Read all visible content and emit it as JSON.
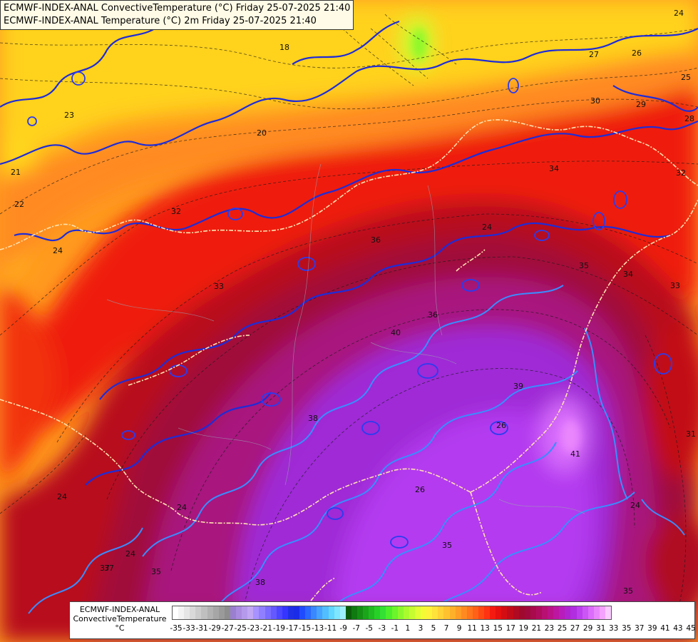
{
  "titles": {
    "line1": "ECMWF-INDEX-ANAL ConvectiveTemperature (°C) Friday 25-07-2025 21:40",
    "line2": "ECMWF-INDEX-ANAL Temperature (°C) 2m Friday 25-07-2025 21:40"
  },
  "legend": {
    "title_line1": "ECMWF-INDEX-ANAL",
    "title_line2": "ConvectiveTemperature",
    "unit": "°C",
    "tick_labels": [
      "-35",
      "-33",
      "-31",
      "-29",
      "-27",
      "-25",
      "-23",
      "-21",
      "-19",
      "-17",
      "-15",
      "-13",
      "-11",
      "-9",
      "-7",
      "-5",
      "-3",
      "-1",
      "1",
      "3",
      "5",
      "7",
      "9",
      "11",
      "13",
      "15",
      "17",
      "19",
      "21",
      "23",
      "25",
      "27",
      "29",
      "31",
      "33",
      "35",
      "37",
      "39",
      "41",
      "43",
      "45"
    ],
    "colors": [
      "#ffffff",
      "#f3f3f3",
      "#e6e6e6",
      "#d9d9d9",
      "#cccccc",
      "#bfbfbf",
      "#b2b2b2",
      "#a6a6a6",
      "#9a9a9a",
      "#8e8e8e",
      "#9a7fd0",
      "#a98bdf",
      "#b59aec",
      "#c2a8f4",
      "#a892ff",
      "#9080ff",
      "#7a6cff",
      "#6458ff",
      "#4b46ff",
      "#3535ff",
      "#1f2fe6",
      "#1a2ce8",
      "#1f4bff",
      "#2a68ff",
      "#3a88ff",
      "#46a3ff",
      "#52beff",
      "#61d6ff",
      "#7fe6ff",
      "#9ef2ff",
      "#0a5c0a",
      "#0f7a0f",
      "#148f14",
      "#1aa51a",
      "#20bb20",
      "#27d027",
      "#33e033",
      "#4cee2c",
      "#6bf52a",
      "#8cf82c",
      "#aafb2e",
      "#c6fd30",
      "#e0fe33",
      "#f4fb35",
      "#fff23a",
      "#ffe23a",
      "#ffd235",
      "#ffc22f",
      "#ffb02a",
      "#ff9d25",
      "#ff8a20",
      "#ff761c",
      "#ff6118",
      "#ff4a14",
      "#ff3311",
      "#f51a10",
      "#e6100f",
      "#d40d12",
      "#c20b18",
      "#b00a22",
      "#a0092e",
      "#a0093c",
      "#a80a4c",
      "#b00c5e",
      "#b80f72",
      "#bc1288",
      "#bd16a0",
      "#b81cba",
      "#b024d0",
      "#b02ee0",
      "#bc40ee",
      "#cc55f6",
      "#dc6cfb",
      "#ea86fd",
      "#f4a2fe",
      "#faccff"
    ]
  },
  "contour_labels": [
    "24",
    "22",
    "18",
    "20",
    "23",
    "21",
    "24",
    "26",
    "25",
    "27",
    "30",
    "29",
    "28",
    "32",
    "34",
    "33",
    "35",
    "31",
    "36",
    "37",
    "38",
    "39",
    "40",
    "41",
    "26",
    "24",
    "24",
    "26",
    "24",
    "37",
    "35",
    "38",
    "36",
    "24",
    "24",
    "35",
    "33",
    "35",
    "32",
    "34"
  ],
  "map": {
    "background": "#000000",
    "colors": {
      "cool_yellow": "#ffd21c",
      "orange": "#ff9a1e",
      "red": "#ef1a10",
      "dark_red": "#b80c1c",
      "crimson": "#a0093a",
      "magenta": "#a8157e",
      "purple": "#9f2bd6",
      "violet": "#b43bf0",
      "light_violet": "#d76cfb",
      "contour_blue": "#1e2cd8",
      "contour_lightblue": "#3a8cff",
      "border": "#ffe2b0"
    }
  }
}
